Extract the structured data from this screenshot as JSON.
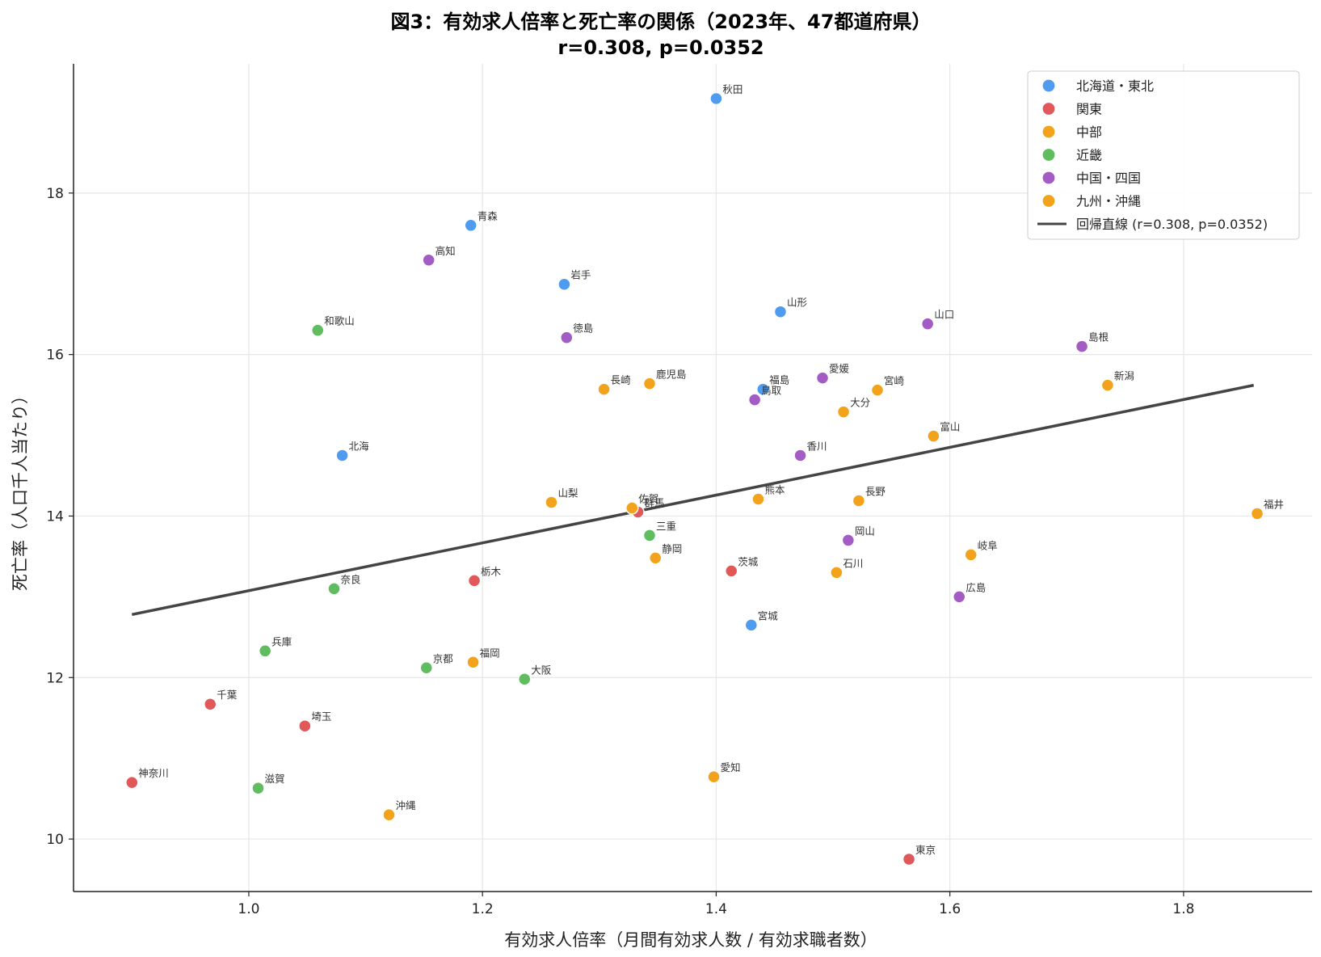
{
  "chart_data": {
    "type": "scatter",
    "title": "図3：有効求人倍率と死亡率の関係（2023年、47都道府県）",
    "subtitle": "r=0.308, p=0.0352",
    "xlabel": "有効求人倍率（月間有効求人数 / 有効求職者数）",
    "ylabel": "死亡率（人口千人当たり）",
    "xlim": [
      0.85,
      1.91
    ],
    "ylim": [
      9.35,
      19.6
    ],
    "xticks": [
      1.0,
      1.2,
      1.4,
      1.6,
      1.8
    ],
    "xtick_labels": [
      "1.0",
      "1.2",
      "1.4",
      "1.6",
      "1.8"
    ],
    "yticks": [
      10,
      12,
      14,
      16,
      18
    ],
    "ytick_labels": [
      "10",
      "12",
      "14",
      "16",
      "18"
    ],
    "grid": true,
    "legend_position": "top-right",
    "regions": [
      {
        "name": "北海道・東北",
        "color": "#4f9bf0"
      },
      {
        "name": "関東",
        "color": "#e0585a"
      },
      {
        "name": "中部",
        "color": "#f2a31b"
      },
      {
        "name": "近畿",
        "color": "#5fbc5f"
      },
      {
        "name": "中国・四国",
        "color": "#a25cc4"
      },
      {
        "name": "九州・沖縄",
        "color": "#f2a31b"
      }
    ],
    "regression": {
      "label": "回帰直線 (r=0.308, p=0.0352)",
      "x": [
        0.9,
        1.86
      ],
      "y": [
        12.78,
        15.62
      ],
      "color": "#444444"
    },
    "points": [
      {
        "name": "北海",
        "x": 1.08,
        "y": 14.75,
        "region": 0
      },
      {
        "name": "青森",
        "x": 1.19,
        "y": 17.6,
        "region": 0
      },
      {
        "name": "岩手",
        "x": 1.27,
        "y": 16.87,
        "region": 0
      },
      {
        "name": "宮城",
        "x": 1.43,
        "y": 12.65,
        "region": 0
      },
      {
        "name": "秋田",
        "x": 1.4,
        "y": 19.17,
        "region": 0
      },
      {
        "name": "山形",
        "x": 1.455,
        "y": 16.53,
        "region": 0
      },
      {
        "name": "福島",
        "x": 1.44,
        "y": 15.57,
        "region": 0
      },
      {
        "name": "茨城",
        "x": 1.413,
        "y": 13.32,
        "region": 1
      },
      {
        "name": "栃木",
        "x": 1.193,
        "y": 13.2,
        "region": 1
      },
      {
        "name": "群馬",
        "x": 1.333,
        "y": 14.05,
        "region": 1
      },
      {
        "name": "埼玉",
        "x": 1.048,
        "y": 11.4,
        "region": 1
      },
      {
        "name": "千葉",
        "x": 0.967,
        "y": 11.67,
        "region": 1
      },
      {
        "name": "東京",
        "x": 1.565,
        "y": 9.75,
        "region": 1
      },
      {
        "name": "神奈川",
        "x": 0.9,
        "y": 10.7,
        "region": 1
      },
      {
        "name": "新潟",
        "x": 1.735,
        "y": 15.62,
        "region": 2
      },
      {
        "name": "富山",
        "x": 1.586,
        "y": 14.99,
        "region": 2
      },
      {
        "name": "石川",
        "x": 1.503,
        "y": 13.3,
        "region": 2
      },
      {
        "name": "福井",
        "x": 1.863,
        "y": 14.03,
        "region": 2
      },
      {
        "name": "山梨",
        "x": 1.259,
        "y": 14.17,
        "region": 2
      },
      {
        "name": "長野",
        "x": 1.522,
        "y": 14.19,
        "region": 2
      },
      {
        "name": "岐阜",
        "x": 1.618,
        "y": 13.52,
        "region": 2
      },
      {
        "name": "静岡",
        "x": 1.348,
        "y": 13.48,
        "region": 2
      },
      {
        "name": "愛知",
        "x": 1.398,
        "y": 10.77,
        "region": 2
      },
      {
        "name": "三重",
        "x": 1.343,
        "y": 13.76,
        "region": 3
      },
      {
        "name": "滋賀",
        "x": 1.008,
        "y": 10.63,
        "region": 3
      },
      {
        "name": "京都",
        "x": 1.152,
        "y": 12.12,
        "region": 3
      },
      {
        "name": "大阪",
        "x": 1.236,
        "y": 11.98,
        "region": 3
      },
      {
        "name": "兵庫",
        "x": 1.014,
        "y": 12.33,
        "region": 3
      },
      {
        "name": "奈良",
        "x": 1.073,
        "y": 13.1,
        "region": 3
      },
      {
        "name": "和歌山",
        "x": 1.059,
        "y": 16.3,
        "region": 3
      },
      {
        "name": "鳥取",
        "x": 1.433,
        "y": 15.44,
        "region": 4
      },
      {
        "name": "島根",
        "x": 1.713,
        "y": 16.1,
        "region": 4
      },
      {
        "name": "岡山",
        "x": 1.513,
        "y": 13.7,
        "region": 4
      },
      {
        "name": "広島",
        "x": 1.608,
        "y": 13.0,
        "region": 4
      },
      {
        "name": "山口",
        "x": 1.581,
        "y": 16.38,
        "region": 4
      },
      {
        "name": "徳島",
        "x": 1.272,
        "y": 16.21,
        "region": 4
      },
      {
        "name": "香川",
        "x": 1.472,
        "y": 14.75,
        "region": 4
      },
      {
        "name": "愛媛",
        "x": 1.491,
        "y": 15.71,
        "region": 4
      },
      {
        "name": "高知",
        "x": 1.154,
        "y": 17.17,
        "region": 4
      },
      {
        "name": "福岡",
        "x": 1.192,
        "y": 12.19,
        "region": 5
      },
      {
        "name": "佐賀",
        "x": 1.328,
        "y": 14.1,
        "region": 5
      },
      {
        "name": "長崎",
        "x": 1.304,
        "y": 15.57,
        "region": 5
      },
      {
        "name": "熊本",
        "x": 1.436,
        "y": 14.21,
        "region": 5
      },
      {
        "name": "大分",
        "x": 1.509,
        "y": 15.29,
        "region": 5
      },
      {
        "name": "宮崎",
        "x": 1.538,
        "y": 15.56,
        "region": 5
      },
      {
        "name": "鹿児島",
        "x": 1.343,
        "y": 15.64,
        "region": 5
      },
      {
        "name": "沖縄",
        "x": 1.12,
        "y": 10.3,
        "region": 5
      }
    ]
  }
}
